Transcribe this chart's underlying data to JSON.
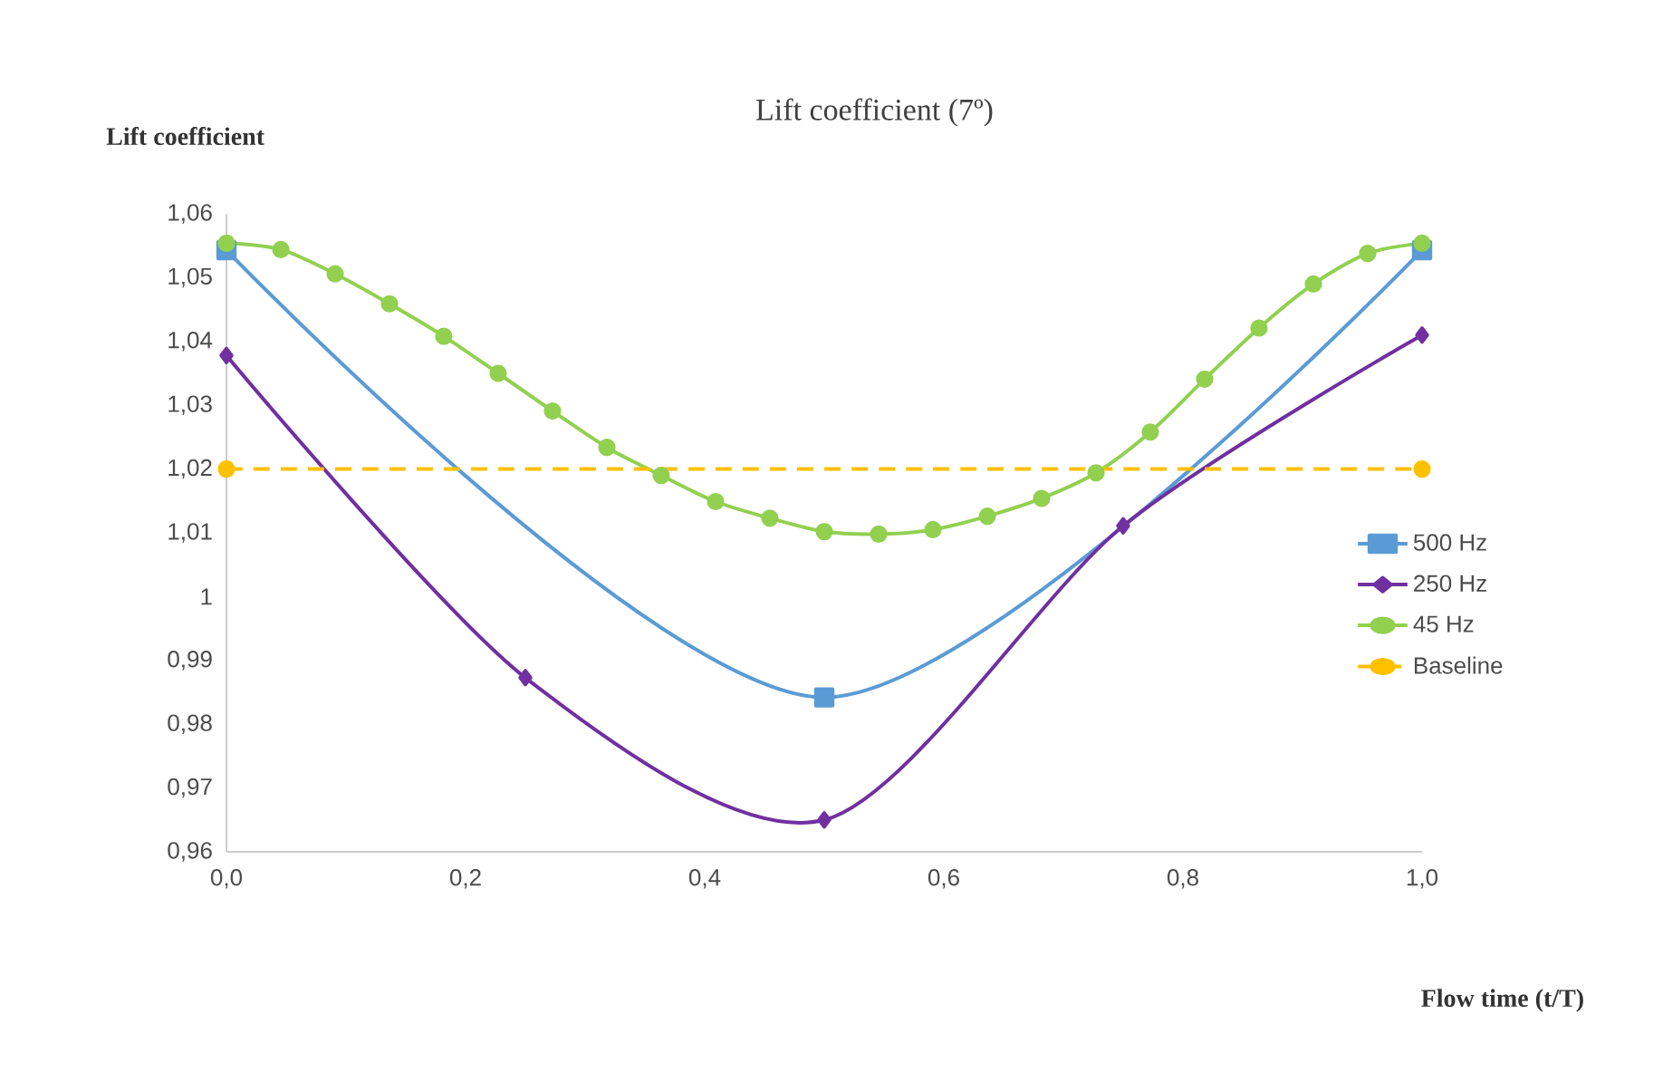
{
  "chart_data": {
    "type": "line",
    "title": "Lift coefficient (7º)",
    "xlabel": "Flow time (t/T)",
    "ylabel": "Lift coefficient",
    "xlim": [
      0,
      1
    ],
    "ylim": [
      0.96,
      1.06
    ],
    "xticks": [
      {
        "value": 0,
        "label": "0,0"
      },
      {
        "value": 0.2,
        "label": "0,2"
      },
      {
        "value": 0.4,
        "label": "0,4"
      },
      {
        "value": 0.6,
        "label": "0,6"
      },
      {
        "value": 0.8,
        "label": "0,8"
      },
      {
        "value": 1,
        "label": "1,0"
      }
    ],
    "yticks": [
      {
        "value": 0.96,
        "label": "0,96"
      },
      {
        "value": 0.97,
        "label": "0,97"
      },
      {
        "value": 0.98,
        "label": "0,98"
      },
      {
        "value": 0.99,
        "label": "0,99"
      },
      {
        "value": 1,
        "label": "1"
      },
      {
        "value": 1.01,
        "label": "1,01"
      },
      {
        "value": 1.02,
        "label": "1,02"
      },
      {
        "value": 1.03,
        "label": "1,03"
      },
      {
        "value": 1.04,
        "label": "1,04"
      },
      {
        "value": 1.05,
        "label": "1,05"
      },
      {
        "value": 1.06,
        "label": "1,06"
      }
    ],
    "grid": false,
    "legend": "right",
    "series": [
      {
        "name": "500 Hz",
        "color": "#5b9bd5",
        "marker": "square",
        "line_style": "solid",
        "x": [
          0,
          0.5,
          1
        ],
        "values": [
          1.0543,
          0.9842,
          1.0543
        ]
      },
      {
        "name": "250 Hz",
        "color": "#7030a0",
        "marker": "diamond",
        "line_style": "solid",
        "x": [
          0,
          0.25,
          0.5,
          0.75,
          1
        ],
        "values": [
          1.0378,
          0.9873,
          0.965,
          1.0111,
          1.041
        ]
      },
      {
        "name": "45 Hz",
        "color": "#92d050",
        "marker": "circle",
        "line_style": "solid",
        "x": [
          0,
          0.0455,
          0.0909,
          0.1364,
          0.1818,
          0.2273,
          0.2727,
          0.3182,
          0.3636,
          0.4091,
          0.4545,
          0.5,
          0.5455,
          0.5909,
          0.6364,
          0.6818,
          0.7273,
          0.7727,
          0.8182,
          0.8636,
          0.9091,
          0.9545,
          1
        ],
        "values": [
          1.0554,
          1.0544,
          1.0506,
          1.0459,
          1.0408,
          1.035,
          1.0291,
          1.0234,
          1.019,
          1.0149,
          1.0123,
          1.0102,
          1.0098,
          1.0105,
          1.0126,
          1.0154,
          1.0194,
          1.0258,
          1.0341,
          1.0421,
          1.049,
          1.0538,
          1.0554
        ]
      },
      {
        "name": "Baseline",
        "color": "#ffc000",
        "marker": "circle",
        "line_style": "dashed",
        "x": [
          0,
          1
        ],
        "values": [
          1.02,
          1.02
        ]
      }
    ]
  }
}
